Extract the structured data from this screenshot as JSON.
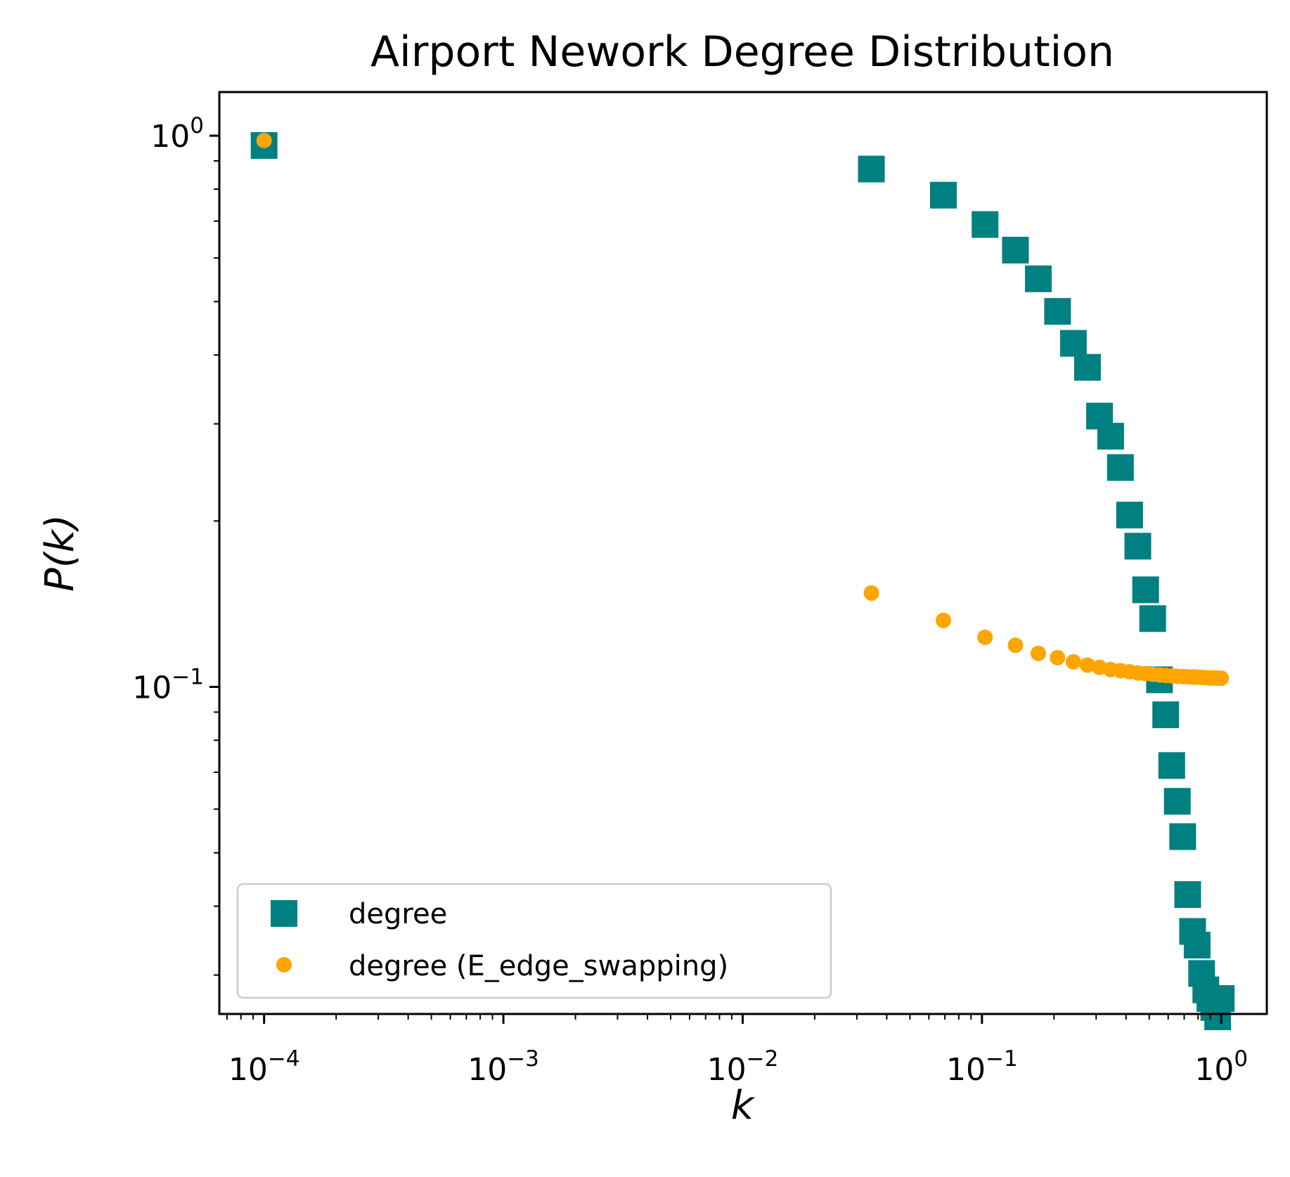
{
  "chart_data": {
    "type": "scatter",
    "title": "Airport Nework Degree Distribution",
    "xlabel": "k",
    "ylabel": "P(k)",
    "xscale": "log",
    "yscale": "log",
    "xlim": [
      6.5e-05,
      1.55
    ],
    "ylim": [
      0.0255,
      1.2
    ],
    "grid": false,
    "legend_position": "lower-left",
    "x_ticks": [
      {
        "base": "10",
        "exp": "−4"
      },
      {
        "base": "10",
        "exp": "−3"
      },
      {
        "base": "10",
        "exp": "−2"
      },
      {
        "base": "10",
        "exp": "−1"
      },
      {
        "base": "10",
        "exp": "0"
      }
    ],
    "y_ticks": [
      {
        "base": "10",
        "exp": "−1"
      },
      {
        "base": "10",
        "exp": "0"
      }
    ],
    "series": [
      {
        "name": "degree",
        "marker": "square",
        "color": "#008080",
        "x": [
          0.0001,
          0.0345,
          0.069,
          0.103,
          0.138,
          0.172,
          0.207,
          0.241,
          0.276,
          0.31,
          0.345,
          0.379,
          0.414,
          0.448,
          0.483,
          0.517,
          0.552,
          0.586,
          0.621,
          0.655,
          0.69,
          0.724,
          0.759,
          0.793,
          0.828,
          0.862,
          0.897,
          0.931,
          0.966,
          1.0
        ],
        "y": [
          0.96,
          0.87,
          0.78,
          0.69,
          0.62,
          0.55,
          0.48,
          0.42,
          0.38,
          0.31,
          0.285,
          0.25,
          0.205,
          0.18,
          0.15,
          0.133,
          0.103,
          0.089,
          0.072,
          0.062,
          0.0535,
          0.042,
          0.036,
          0.034,
          0.0302,
          0.0282,
          0.0272,
          0.0262,
          0.0252,
          0.0272
        ]
      },
      {
        "name": "degree (E_edge_swapping)",
        "marker": "circle",
        "color": "#FFA500",
        "x": [
          0.0001,
          0.0345,
          0.069,
          0.103,
          0.138,
          0.172,
          0.207,
          0.241,
          0.276,
          0.31,
          0.345,
          0.379,
          0.414,
          0.448,
          0.483,
          0.517,
          0.552,
          0.586,
          0.621,
          0.655,
          0.69,
          0.724,
          0.759,
          0.793,
          0.828,
          0.862,
          0.897,
          0.931,
          0.966,
          1.0
        ],
        "y": [
          0.98,
          0.148,
          0.132,
          0.123,
          0.119,
          0.115,
          0.113,
          0.111,
          0.1095,
          0.1085,
          0.1075,
          0.107,
          0.1065,
          0.106,
          0.1057,
          0.1054,
          0.1051,
          0.1049,
          0.1047,
          0.1045,
          0.1044,
          0.1043,
          0.1042,
          0.1041,
          0.104,
          0.1039,
          0.1038,
          0.1038,
          0.1037,
          0.1037
        ]
      }
    ]
  }
}
